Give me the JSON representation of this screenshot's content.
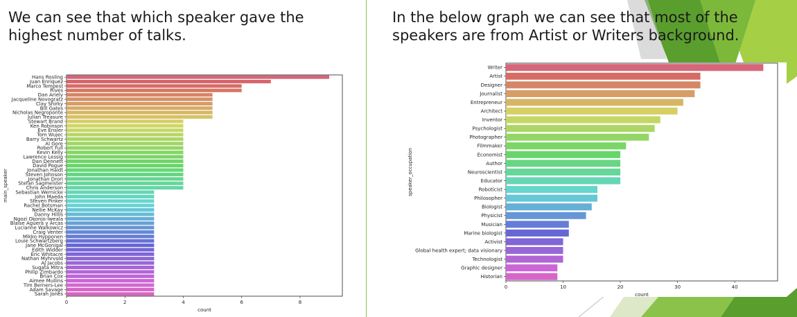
{
  "slide": {
    "left_text": "We can see that which speaker gave the highest number of talks.",
    "right_text": "In the below graph we can see that most of the speakers are from Artist or Writers background."
  },
  "colors": {
    "accent_green": "#8bc34a",
    "dark_green": "#5a9e2e"
  },
  "chart_data": [
    {
      "type": "bar",
      "orientation": "horizontal",
      "xlabel": "count",
      "ylabel": "main_speaker",
      "xlim": [
        0,
        9.45
      ],
      "xticks": [
        0,
        2,
        4,
        6,
        8
      ],
      "categories": [
        "Hans Rosling",
        "Juan Enriquez",
        "Marco Tempest",
        "Rives",
        "Dan Ariely",
        "Jacqueline Novogratz",
        "Clay Shirky",
        "Bill Gates",
        "Nicholas Negroponte",
        "Julian Treasure",
        "Stewart Brand",
        "Ken Robinson",
        "Eve Ensler",
        "Tom Wujec",
        "Barry Schwartz",
        "Al Gore",
        "Robert Full",
        "Kevin Kelly",
        "Lawrence Lessig",
        "Dan Dennett",
        "David Pogue",
        "Jonathan Haidt",
        "Steven Johnson",
        "Jonathan Drori",
        "Stefan Sagmeister",
        "Chris Anderson",
        "Sebastian Wernicke",
        "John Maeda",
        "Steven Pinker",
        "Rachel Botsman",
        "Nellie McKay",
        "Danny Hillis",
        "Ngozi Okonjo-Iweala",
        "Blaise Agüera y Arcas",
        "Lucianne Walkowicz",
        "Craig Venter",
        "Mikko Hypponen",
        "Louie Schwartzberg",
        "Jane McGonigal",
        "Edith Widder",
        "Eric Whitacre",
        "Nathan Myhrvold",
        "AJ Jacobs",
        "Sugata Mitra",
        "Philip Zimbardo",
        "Brian Cox",
        "Aimee Mullins",
        "Tim Berners-Lee",
        "Adam Savage",
        "Sarah Jones"
      ],
      "values": [
        9,
        7,
        6,
        6,
        5,
        5,
        5,
        5,
        5,
        5,
        4,
        4,
        4,
        4,
        4,
        4,
        4,
        4,
        4,
        4,
        4,
        4,
        4,
        4,
        4,
        4,
        3,
        3,
        3,
        3,
        3,
        3,
        3,
        3,
        3,
        3,
        3,
        3,
        3,
        3,
        3,
        3,
        3,
        3,
        3,
        3,
        3,
        3,
        3,
        3
      ]
    },
    {
      "type": "bar",
      "orientation": "horizontal",
      "xlabel": "count",
      "ylabel": "speaker_occupation",
      "xlim": [
        0,
        47.5
      ],
      "xticks": [
        0,
        10,
        20,
        30,
        40
      ],
      "categories": [
        "Writer",
        "Artist",
        "Designer",
        "Journalist",
        "Entrepreneur",
        "Architect",
        "Inventor",
        "Psychologist",
        "Photographer",
        "Filmmaker",
        "Economist",
        "Author",
        "Neuroscientist",
        "Educator",
        "Roboticist",
        "Philosopher",
        "Biologist",
        "Physicist",
        "Musician",
        "Marine biologist",
        "Activist",
        "Global health expert; data visionary",
        "Technologist",
        "Graphic designer",
        "Historian"
      ],
      "values": [
        45,
        34,
        34,
        33,
        31,
        30,
        27,
        26,
        25,
        21,
        20,
        20,
        20,
        20,
        16,
        16,
        15,
        14,
        11,
        11,
        10,
        10,
        10,
        9,
        9
      ]
    }
  ]
}
